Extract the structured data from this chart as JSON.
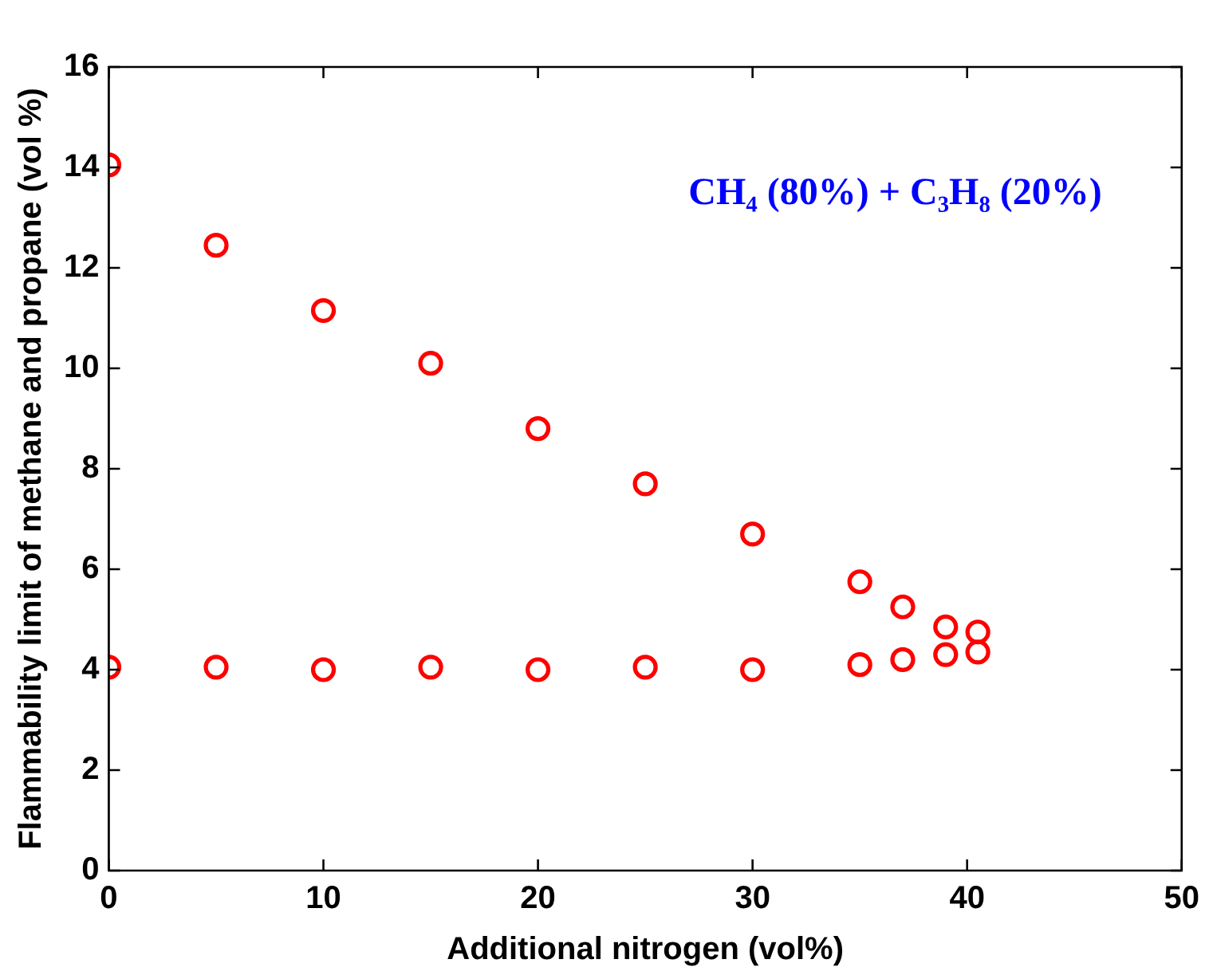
{
  "chart_data": {
    "type": "scatter",
    "xlabel": "Additional nitrogen (vol%)",
    "ylabel": "Flammability limit of methane and propane (vol %)",
    "annotations": [
      "CH₄ (80%) + C₃H₈ (20%)"
    ],
    "x": [
      0,
      5,
      10,
      15,
      20,
      25,
      30,
      35,
      37,
      39,
      40.5
    ],
    "series": [
      {
        "color": "#ff0000",
        "values": [
          14.05,
          12.45,
          11.15,
          10.1,
          8.8,
          7.7,
          6.7,
          5.75,
          5.25,
          4.85,
          4.75
        ]
      },
      {
        "color": "#ff0000",
        "values": [
          4.05,
          4.05,
          4.0,
          4.05,
          4.0,
          4.05,
          4.0,
          4.1,
          4.2,
          4.3,
          4.35
        ]
      }
    ],
    "xlim": [
      0,
      50
    ],
    "xticks": [
      0,
      10,
      20,
      30,
      40,
      50
    ],
    "ylim": [
      0,
      16
    ],
    "yticks": [
      0,
      2,
      4,
      6,
      8,
      10,
      12,
      14,
      16
    ],
    "grid": false,
    "legend": false,
    "marker": "circle"
  }
}
